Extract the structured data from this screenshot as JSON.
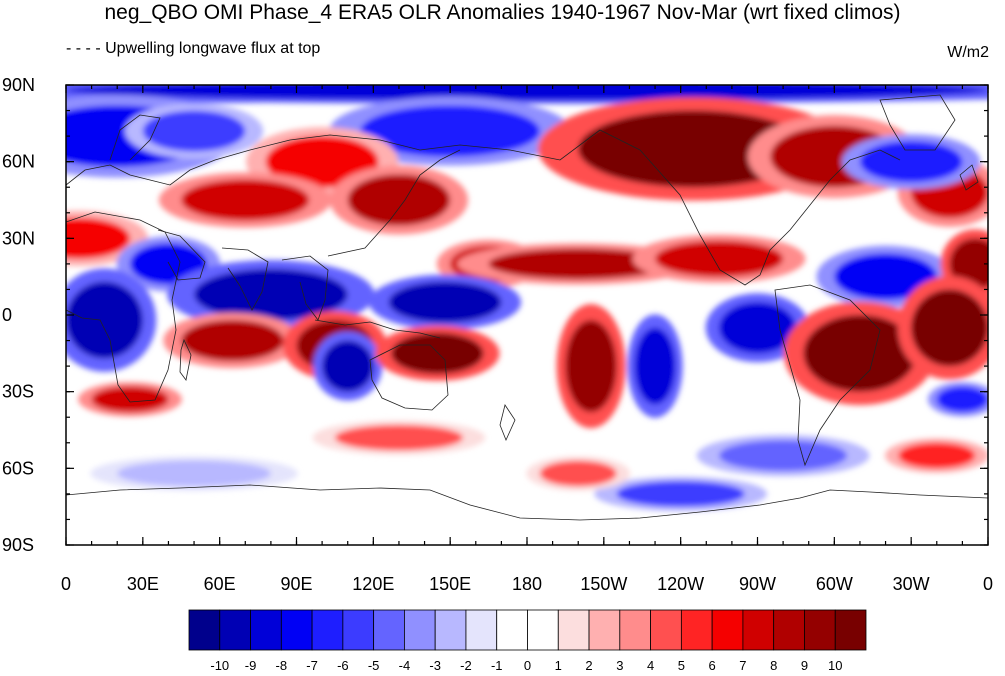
{
  "header": {
    "title": "neg_QBO OMI Phase_4 ERA5 OLR Anomalies 1940-1967 Nov-Mar (wrt fixed climos)",
    "subtitle": "- - - - Upwelling longwave flux at top",
    "units": "W/m2"
  },
  "map": {
    "projection": "cylindrical-equidistant",
    "lon_range": [
      0,
      360
    ],
    "lat_range": [
      -90,
      90
    ],
    "lat_ticks": [
      "90N",
      "60N",
      "30N",
      "0",
      "30S",
      "60S",
      "90S"
    ],
    "lon_ticks": [
      "0",
      "30E",
      "60E",
      "90E",
      "120E",
      "150E",
      "180",
      "150W",
      "120W",
      "90W",
      "60W",
      "30W",
      "0"
    ],
    "coastlines": true,
    "anomaly_blobs": [
      {
        "lon": 10,
        "lat": 88,
        "rx": 120,
        "ry": 4,
        "v": -9
      },
      {
        "lon": 180,
        "lat": 88,
        "rx": 180,
        "ry": 4,
        "v": -9
      },
      {
        "lon": 20,
        "lat": 70,
        "rx": 35,
        "ry": 12,
        "v": -8
      },
      {
        "lon": 50,
        "lat": 72,
        "rx": 20,
        "ry": 8,
        "v": -6
      },
      {
        "lon": 150,
        "lat": 72,
        "rx": 35,
        "ry": 10,
        "v": -7
      },
      {
        "lon": 100,
        "lat": 60,
        "rx": 22,
        "ry": 10,
        "v": 6
      },
      {
        "lon": 70,
        "lat": 45,
        "rx": 25,
        "ry": 8,
        "v": 7
      },
      {
        "lon": 130,
        "lat": 45,
        "rx": 20,
        "ry": 10,
        "v": 8
      },
      {
        "lon": 245,
        "lat": 65,
        "rx": 45,
        "ry": 15,
        "v": 10
      },
      {
        "lon": 300,
        "lat": 62,
        "rx": 25,
        "ry": 12,
        "v": 8
      },
      {
        "lon": 345,
        "lat": 48,
        "rx": 15,
        "ry": 10,
        "v": 7
      },
      {
        "lon": 330,
        "lat": 60,
        "rx": 20,
        "ry": 8,
        "v": -7
      },
      {
        "lon": 5,
        "lat": 30,
        "rx": 20,
        "ry": 8,
        "v": 6
      },
      {
        "lon": 40,
        "lat": 20,
        "rx": 15,
        "ry": 8,
        "v": -8
      },
      {
        "lon": 80,
        "lat": 8,
        "rx": 30,
        "ry": 10,
        "v": -10
      },
      {
        "lon": 165,
        "lat": 20,
        "rx": 15,
        "ry": 7,
        "v": 7
      },
      {
        "lon": 200,
        "lat": 20,
        "rx": 35,
        "ry": 6,
        "v": 8
      },
      {
        "lon": 255,
        "lat": 22,
        "rx": 25,
        "ry": 7,
        "v": 7
      },
      {
        "lon": 320,
        "lat": 15,
        "rx": 20,
        "ry": 9,
        "v": -8
      },
      {
        "lon": 355,
        "lat": 20,
        "rx": 10,
        "ry": 10,
        "v": 9
      },
      {
        "lon": 15,
        "lat": -2,
        "rx": 15,
        "ry": 15,
        "v": -10
      },
      {
        "lon": 65,
        "lat": -10,
        "rx": 20,
        "ry": 8,
        "v": 8
      },
      {
        "lon": 105,
        "lat": -12,
        "rx": 15,
        "ry": 10,
        "v": 9
      },
      {
        "lon": 148,
        "lat": 5,
        "rx": 22,
        "ry": 8,
        "v": -10
      },
      {
        "lon": 110,
        "lat": -20,
        "rx": 10,
        "ry": 10,
        "v": -10
      },
      {
        "lon": 145,
        "lat": -15,
        "rx": 18,
        "ry": 8,
        "v": 10
      },
      {
        "lon": 205,
        "lat": -20,
        "rx": 10,
        "ry": 18,
        "v": 9
      },
      {
        "lon": 230,
        "lat": -20,
        "rx": 8,
        "ry": 15,
        "v": -9
      },
      {
        "lon": 270,
        "lat": -5,
        "rx": 15,
        "ry": 10,
        "v": -9
      },
      {
        "lon": 310,
        "lat": -15,
        "rx": 22,
        "ry": 15,
        "v": 10
      },
      {
        "lon": 345,
        "lat": -5,
        "rx": 15,
        "ry": 15,
        "v": 10
      },
      {
        "lon": 25,
        "lat": -33,
        "rx": 15,
        "ry": 5,
        "v": 7
      },
      {
        "lon": 350,
        "lat": -33,
        "rx": 10,
        "ry": 5,
        "v": -7
      },
      {
        "lon": 130,
        "lat": -48,
        "rx": 25,
        "ry": 5,
        "v": 4
      },
      {
        "lon": 280,
        "lat": -55,
        "rx": 25,
        "ry": 6,
        "v": -5
      },
      {
        "lon": 340,
        "lat": -55,
        "rx": 15,
        "ry": 5,
        "v": 5
      },
      {
        "lon": 50,
        "lat": -62,
        "rx": 30,
        "ry": 5,
        "v": -3
      },
      {
        "lon": 240,
        "lat": -70,
        "rx": 25,
        "ry": 5,
        "v": -6
      },
      {
        "lon": 200,
        "lat": -62,
        "rx": 15,
        "ry": 5,
        "v": 4
      }
    ]
  },
  "colorbar": {
    "labels": [
      "-10",
      "-9",
      "-8",
      "-7",
      "-6",
      "-5",
      "-4",
      "-3",
      "-2",
      "-1",
      "0",
      "1",
      "2",
      "3",
      "4",
      "5",
      "6",
      "7",
      "8",
      "9",
      "10"
    ],
    "colors": [
      "#00008c",
      "#0000b4",
      "#0000d8",
      "#0000f5",
      "#1e1eff",
      "#3c3cff",
      "#6464ff",
      "#9090ff",
      "#b8b8ff",
      "#e4e4fc",
      "#ffffff",
      "#ffffff",
      "#fcdede",
      "#ffb0b0",
      "#ff8c8c",
      "#ff5050",
      "#ff2424",
      "#f50000",
      "#d00000",
      "#b00000",
      "#940000",
      "#780000"
    ]
  }
}
